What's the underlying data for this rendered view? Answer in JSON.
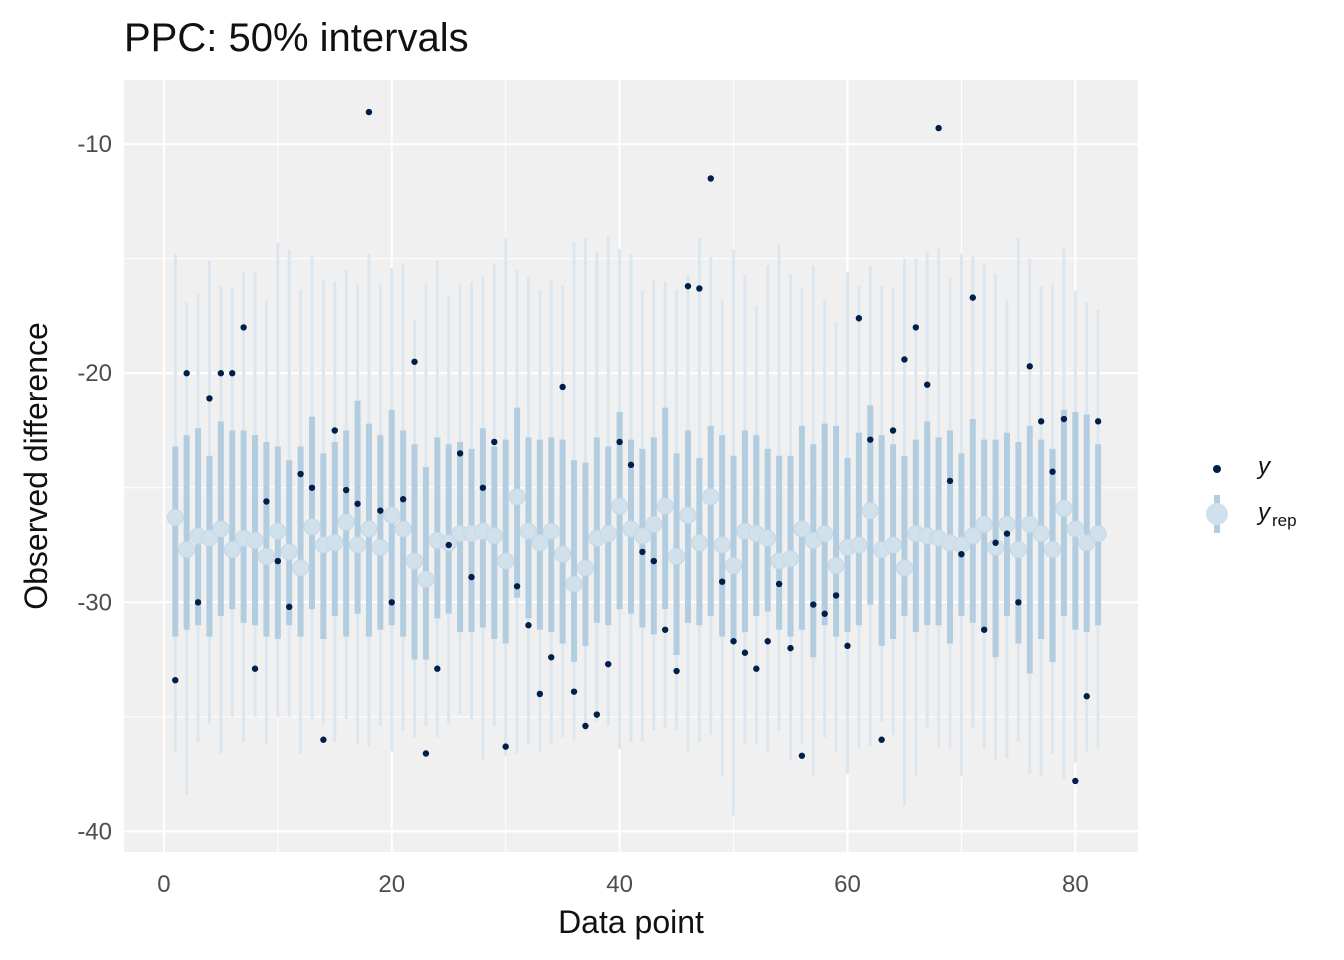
{
  "chart_data": {
    "type": "scatter",
    "title": "PPC: 50% intervals",
    "xlabel": "Data point",
    "ylabel": "Observed difference",
    "xlim": [
      -3.5,
      85.5
    ],
    "ylim": [
      -40.9,
      -7.2
    ],
    "x_ticks": [
      0,
      20,
      40,
      60,
      80
    ],
    "x_tick_labels": [
      "0",
      "20",
      "40",
      "60",
      "80"
    ],
    "y_ticks": [
      -40,
      -30,
      -20,
      -10
    ],
    "y_tick_labels": [
      "-40",
      "-30",
      "-20",
      "-10"
    ],
    "grid": true,
    "legend_position": "right",
    "legend": [
      {
        "key": "y",
        "label": "y",
        "sub": ""
      },
      {
        "key": "yrep",
        "label": "y",
        "sub": "rep"
      }
    ],
    "colors": {
      "y_point": "#011f4b",
      "outer_interval": "#dce6ee",
      "inner_interval": "#b3cde0",
      "median_point": "#d1e1ec",
      "panel_bg": "#f0f0f0",
      "grid": "#ffffff"
    },
    "series": [
      {
        "name": "y",
        "x": [
          1,
          2,
          3,
          4,
          5,
          6,
          7,
          8,
          9,
          10,
          11,
          12,
          13,
          14,
          15,
          16,
          17,
          18,
          19,
          20,
          21,
          22,
          23,
          24,
          25,
          26,
          27,
          28,
          29,
          30,
          31,
          32,
          33,
          34,
          35,
          36,
          37,
          38,
          39,
          40,
          41,
          42,
          43,
          44,
          45,
          46,
          47,
          48,
          49,
          50,
          51,
          52,
          53,
          54,
          55,
          56,
          57,
          58,
          59,
          60,
          61,
          62,
          63,
          64,
          65,
          66,
          67,
          68,
          69,
          70,
          71,
          72,
          73,
          74,
          75,
          76,
          77,
          78,
          79,
          80,
          81,
          82
        ],
        "values": [
          -33.4,
          -20.0,
          -30.0,
          -21.1,
          -20.0,
          -20.0,
          -18.0,
          -32.9,
          -25.6,
          -28.2,
          -30.2,
          -24.4,
          -25.0,
          -36.0,
          -22.5,
          -25.1,
          -25.7,
          -8.6,
          -26.0,
          -30.0,
          -25.5,
          -19.5,
          -36.6,
          -32.9,
          -27.5,
          -23.5,
          -28.9,
          -25.0,
          -23.0,
          -36.3,
          -29.3,
          -31.0,
          -34.0,
          -32.4,
          -20.6,
          -33.9,
          -35.4,
          -34.9,
          -32.7,
          -23.0,
          -24.0,
          -27.8,
          -28.2,
          -31.2,
          -33.0,
          -16.2,
          -16.3,
          -11.5,
          -29.1,
          -31.7,
          -32.2,
          -32.9,
          -31.7,
          -29.2,
          -32.0,
          -36.7,
          -30.1,
          -30.5,
          -29.7,
          -31.9,
          -17.6,
          -22.9,
          -36.0,
          -22.5,
          -19.4,
          -18.0,
          -20.5,
          -9.3,
          -24.7,
          -27.9,
          -16.7,
          -31.2,
          -27.4,
          -27.0,
          -30.0,
          -19.7,
          -22.1,
          -24.3,
          -22.0,
          -37.8,
          -34.1,
          -22.1
        ]
      },
      {
        "name": "yrep",
        "x": [
          1,
          2,
          3,
          4,
          5,
          6,
          7,
          8,
          9,
          10,
          11,
          12,
          13,
          14,
          15,
          16,
          17,
          18,
          19,
          20,
          21,
          22,
          23,
          24,
          25,
          26,
          27,
          28,
          29,
          30,
          31,
          32,
          33,
          34,
          35,
          36,
          37,
          38,
          39,
          40,
          41,
          42,
          43,
          44,
          45,
          46,
          47,
          48,
          49,
          50,
          51,
          52,
          53,
          54,
          55,
          56,
          57,
          58,
          59,
          60,
          61,
          62,
          63,
          64,
          65,
          66,
          67,
          68,
          69,
          70,
          71,
          72,
          73,
          74,
          75,
          76,
          77,
          78,
          79,
          80,
          81,
          82
        ],
        "median": [
          -26.3,
          -27.7,
          -27.1,
          -27.2,
          -26.8,
          -27.7,
          -27.2,
          -27.3,
          -28.0,
          -26.9,
          -27.8,
          -28.5,
          -26.7,
          -27.5,
          -27.4,
          -26.5,
          -27.5,
          -26.8,
          -27.6,
          -26.2,
          -26.8,
          -28.2,
          -29.0,
          -27.3,
          -27.4,
          -27.0,
          -27.0,
          -26.9,
          -27.1,
          -28.2,
          -25.4,
          -26.9,
          -27.4,
          -26.9,
          -27.9,
          -29.2,
          -28.5,
          -27.2,
          -27.0,
          -25.8,
          -26.8,
          -27.1,
          -26.6,
          -25.8,
          -28.0,
          -26.2,
          -27.4,
          -25.4,
          -27.5,
          -28.4,
          -26.9,
          -27.0,
          -27.2,
          -28.2,
          -28.1,
          -26.8,
          -27.3,
          -27.0,
          -28.4,
          -27.6,
          -27.5,
          -26.0,
          -27.7,
          -27.5,
          -28.5,
          -27.0,
          -27.1,
          -27.2,
          -27.4,
          -27.5,
          -27.1,
          -26.6,
          -27.6,
          -26.6,
          -27.7,
          -26.6,
          -27.0,
          -27.7,
          -25.9,
          -26.8,
          -27.4,
          -27.0
        ],
        "inner_low": [
          -31.5,
          -31.2,
          -31.0,
          -31.5,
          -30.6,
          -30.3,
          -30.9,
          -31.0,
          -31.5,
          -31.6,
          -31.0,
          -31.5,
          -30.3,
          -31.6,
          -30.6,
          -31.5,
          -30.5,
          -31.5,
          -31.2,
          -31.0,
          -31.5,
          -32.5,
          -32.5,
          -30.7,
          -30.5,
          -31.3,
          -31.3,
          -31.1,
          -31.6,
          -31.8,
          -29.8,
          -30.7,
          -31.2,
          -31.3,
          -31.8,
          -32.6,
          -31.9,
          -30.9,
          -31.0,
          -30.3,
          -30.5,
          -31.1,
          -31.4,
          -30.3,
          -32.3,
          -30.9,
          -31.0,
          -30.6,
          -31.5,
          -31.8,
          -31.3,
          -30.6,
          -30.4,
          -31.2,
          -31.5,
          -31.2,
          -32.4,
          -31.0,
          -31.5,
          -31.3,
          -31.0,
          -30.1,
          -31.9,
          -31.6,
          -30.6,
          -31.3,
          -31.0,
          -31.0,
          -31.8,
          -30.6,
          -30.9,
          -31.3,
          -32.4,
          -30.6,
          -31.8,
          -33.1,
          -31.6,
          -32.6,
          -30.6,
          -31.2,
          -31.3,
          -31.0
        ],
        "inner_high": [
          -23.2,
          -22.7,
          -22.4,
          -23.6,
          -22.1,
          -22.5,
          -22.5,
          -22.7,
          -23.0,
          -23.2,
          -23.8,
          -23.2,
          -21.9,
          -23.5,
          -23.0,
          -22.5,
          -21.2,
          -22.2,
          -22.7,
          -21.6,
          -22.5,
          -23.1,
          -24.1,
          -22.8,
          -23.1,
          -23.0,
          -23.3,
          -22.4,
          -23.2,
          -22.9,
          -21.5,
          -22.8,
          -22.9,
          -22.8,
          -22.9,
          -23.8,
          -23.9,
          -22.8,
          -23.2,
          -21.7,
          -22.9,
          -23.3,
          -22.8,
          -21.5,
          -23.5,
          -22.5,
          -23.7,
          -22.3,
          -22.7,
          -23.6,
          -22.5,
          -22.7,
          -23.3,
          -23.6,
          -23.6,
          -22.3,
          -23.1,
          -22.2,
          -22.3,
          -23.7,
          -22.6,
          -21.4,
          -22.7,
          -23.1,
          -23.6,
          -22.9,
          -22.1,
          -22.8,
          -22.5,
          -23.5,
          -22.0,
          -22.9,
          -22.9,
          -22.6,
          -23.0,
          -22.3,
          -22.9,
          -23.3,
          -21.6,
          -21.7,
          -21.8,
          -23.1
        ],
        "outer_low": [
          -36.5,
          -38.4,
          -36.1,
          -35.3,
          -36.6,
          -35.0,
          -36.1,
          -35.0,
          -36.2,
          -35.0,
          -35.0,
          -36.6,
          -35.1,
          -35.3,
          -36.1,
          -35.1,
          -36.2,
          -36.3,
          -35.4,
          -36.5,
          -35.6,
          -35.9,
          -35.4,
          -35.9,
          -35.3,
          -34.9,
          -35.1,
          -36.9,
          -35.4,
          -36.7,
          -36.6,
          -36.2,
          -36.5,
          -36.2,
          -35.9,
          -36.0,
          -35.6,
          -35.2,
          -35.4,
          -36.4,
          -36.1,
          -36.1,
          -35.6,
          -35.5,
          -35.6,
          -36.5,
          -36.1,
          -35.8,
          -37.6,
          -39.3,
          -36.2,
          -36.2,
          -36.5,
          -35.6,
          -36.9,
          -36.2,
          -37.6,
          -35.9,
          -36.5,
          -37.5,
          -36.4,
          -36.3,
          -35.2,
          -35.8,
          -38.9,
          -37.6,
          -35.5,
          -36.4,
          -36.4,
          -37.6,
          -35.5,
          -36.4,
          -36.9,
          -36.8,
          -36.1,
          -37.5,
          -37.6,
          -36.6,
          -37.7,
          -37.0,
          -36.5,
          -36.4
        ],
        "outer_high": [
          -14.8,
          -16.9,
          -16.5,
          -15.1,
          -16.2,
          -16.3,
          -15.6,
          -15.6,
          -16.8,
          -14.3,
          -14.6,
          -16.4,
          -14.9,
          -15.9,
          -16.0,
          -15.5,
          -16.1,
          -14.8,
          -16.1,
          -15.4,
          -15.2,
          -17.7,
          -16.1,
          -15.1,
          -16.6,
          -16.1,
          -16.0,
          -15.8,
          -15.2,
          -14.1,
          -15.5,
          -15.8,
          -16.4,
          -15.9,
          -16.2,
          -14.3,
          -14.1,
          -14.7,
          -14.0,
          -14.6,
          -14.8,
          -16.4,
          -15.9,
          -16.0,
          -16.4,
          -15.7,
          -14.1,
          -14.9,
          -16.8,
          -14.6,
          -15.7,
          -17.1,
          -15.3,
          -14.4,
          -15.7,
          -16.3,
          -15.3,
          -16.8,
          -17.8,
          -15.6,
          -16.2,
          -15.3,
          -16.2,
          -16.3,
          -15.0,
          -15.0,
          -14.7,
          -14.5,
          -15.8,
          -14.8,
          -14.9,
          -15.2,
          -15.7,
          -16.8,
          -14.1,
          -15.0,
          -16.2,
          -16.1,
          -14.5,
          -16.4,
          -16.9,
          -17.2
        ]
      }
    ]
  }
}
